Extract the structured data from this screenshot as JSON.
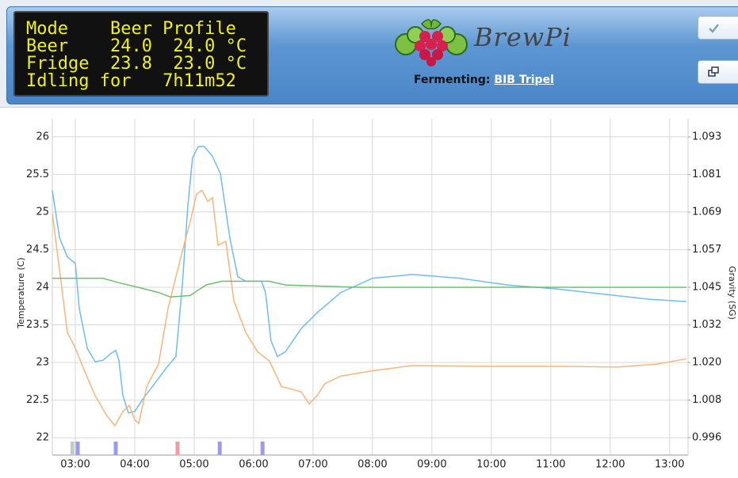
{
  "lcd": {
    "lines": [
      "Mode    Beer Profile",
      "Beer    24.0  24.0 °C",
      "Fridge  23.8  23.0 °C",
      "Idling for   7h11m52"
    ]
  },
  "header": {
    "logo_text": "BrewPi",
    "fermenting_label": "Fermenting:",
    "beer_name": "BIB Tripel"
  },
  "chart_data": {
    "type": "line",
    "y_label": "Temperature (C)",
    "y2_label": "Gravity (SG)",
    "xlim": [
      2.613,
      13.31
    ],
    "xticks": [
      {
        "value": 3,
        "label": "03:00"
      },
      {
        "value": 4,
        "label": "04:00"
      },
      {
        "value": 5,
        "label": "05:00"
      },
      {
        "value": 6,
        "label": "06:00"
      },
      {
        "value": 7,
        "label": "07:00"
      },
      {
        "value": 8,
        "label": "08:00"
      },
      {
        "value": 9,
        "label": "09:00"
      },
      {
        "value": 10,
        "label": "10:00"
      },
      {
        "value": 11,
        "label": "11:00"
      },
      {
        "value": 12,
        "label": "12:00"
      },
      {
        "value": 13,
        "label": "13:00"
      }
    ],
    "ylim": [
      21.77,
      26.24
    ],
    "yticks": [
      22,
      22.5,
      23,
      23.5,
      24,
      24.5,
      25,
      25.5,
      26
    ],
    "y2lim": [
      0.9904,
      1.0989
    ],
    "y2ticks": [
      {
        "value": 0.996,
        "label": "0.996"
      },
      {
        "value": 1.008125,
        "label": "1.008"
      },
      {
        "value": 1.02025,
        "label": "1.020"
      },
      {
        "value": 1.032375,
        "label": "1.032"
      },
      {
        "value": 1.0445,
        "label": "1.045"
      },
      {
        "value": 1.056625,
        "label": "1.057"
      },
      {
        "value": 1.06875,
        "label": "1.069"
      },
      {
        "value": 1.080875,
        "label": "1.081"
      },
      {
        "value": 1.093,
        "label": "1.093"
      }
    ],
    "grid": true,
    "series": [
      {
        "color": "#6ebcf0",
        "x": [
          2.613,
          2.733,
          2.867,
          3.0,
          3.067,
          3.2,
          3.333,
          3.467,
          3.6,
          3.68,
          3.733,
          3.8,
          3.893,
          4.0,
          4.133,
          4.333,
          4.533,
          4.693,
          4.8,
          4.893,
          4.973,
          5.067,
          5.173,
          5.307,
          5.44,
          5.6,
          5.733,
          5.867,
          6.133,
          6.2,
          6.293,
          6.4,
          6.533,
          6.8,
          7.067,
          7.467,
          8.0,
          8.667,
          9.467,
          10.267,
          11.067,
          11.867,
          12.667,
          13.28
        ],
        "values": [
          25.29,
          24.66,
          24.4,
          24.32,
          23.72,
          23.19,
          23.01,
          23.03,
          23.12,
          23.16,
          23.03,
          22.56,
          22.33,
          22.35,
          22.51,
          22.72,
          22.93,
          23.08,
          24.03,
          25.08,
          25.72,
          25.87,
          25.87,
          25.74,
          25.51,
          24.66,
          24.14,
          24.08,
          24.08,
          23.93,
          23.29,
          23.08,
          23.14,
          23.45,
          23.66,
          23.93,
          24.12,
          24.17,
          24.12,
          24.03,
          23.98,
          23.91,
          23.84,
          23.81
        ]
      },
      {
        "color": "#f8b57a",
        "x": [
          2.613,
          2.733,
          2.867,
          3.0,
          3.133,
          3.333,
          3.533,
          3.667,
          3.8,
          3.907,
          4.0,
          4.067,
          4.2,
          4.4,
          4.56,
          4.693,
          4.827,
          4.933,
          5.04,
          5.133,
          5.227,
          5.307,
          5.4,
          5.533,
          5.667,
          5.867,
          6.067,
          6.267,
          6.467,
          6.667,
          6.8,
          6.933,
          7.067,
          7.2,
          7.467,
          8.0,
          8.667,
          9.733,
          11.067,
          12.133,
          12.8,
          13.28
        ],
        "values": [
          24.98,
          24.24,
          23.4,
          23.19,
          22.93,
          22.56,
          22.29,
          22.16,
          22.35,
          22.43,
          22.24,
          22.19,
          22.68,
          22.98,
          23.72,
          24.14,
          24.56,
          24.87,
          25.24,
          25.29,
          25.14,
          25.19,
          24.56,
          24.61,
          23.82,
          23.4,
          23.14,
          23.02,
          22.68,
          22.64,
          22.61,
          22.45,
          22.56,
          22.72,
          22.82,
          22.89,
          22.96,
          22.95,
          22.95,
          22.94,
          22.98,
          23.05
        ]
      },
      {
        "color": "#6cc06c",
        "x": [
          2.613,
          3.467,
          3.733,
          4.0,
          4.4,
          4.6,
          4.933,
          5.2,
          5.467,
          6.267,
          6.533,
          7.733,
          13.28
        ],
        "values": [
          24.12,
          24.12,
          24.06,
          24.01,
          23.93,
          23.87,
          23.89,
          24.03,
          24.08,
          24.08,
          24.03,
          24.0,
          24.0
        ]
      }
    ],
    "markers": [
      {
        "x": 2.95,
        "color": "#c8c8c8"
      },
      {
        "x": 3.04,
        "color": "#9a9af0"
      },
      {
        "x": 3.68,
        "color": "#9a9af0"
      },
      {
        "x": 4.72,
        "color": "#f29aa8"
      },
      {
        "x": 5.43,
        "color": "#9a9af0"
      },
      {
        "x": 6.15,
        "color": "#9a9af0"
      }
    ]
  }
}
